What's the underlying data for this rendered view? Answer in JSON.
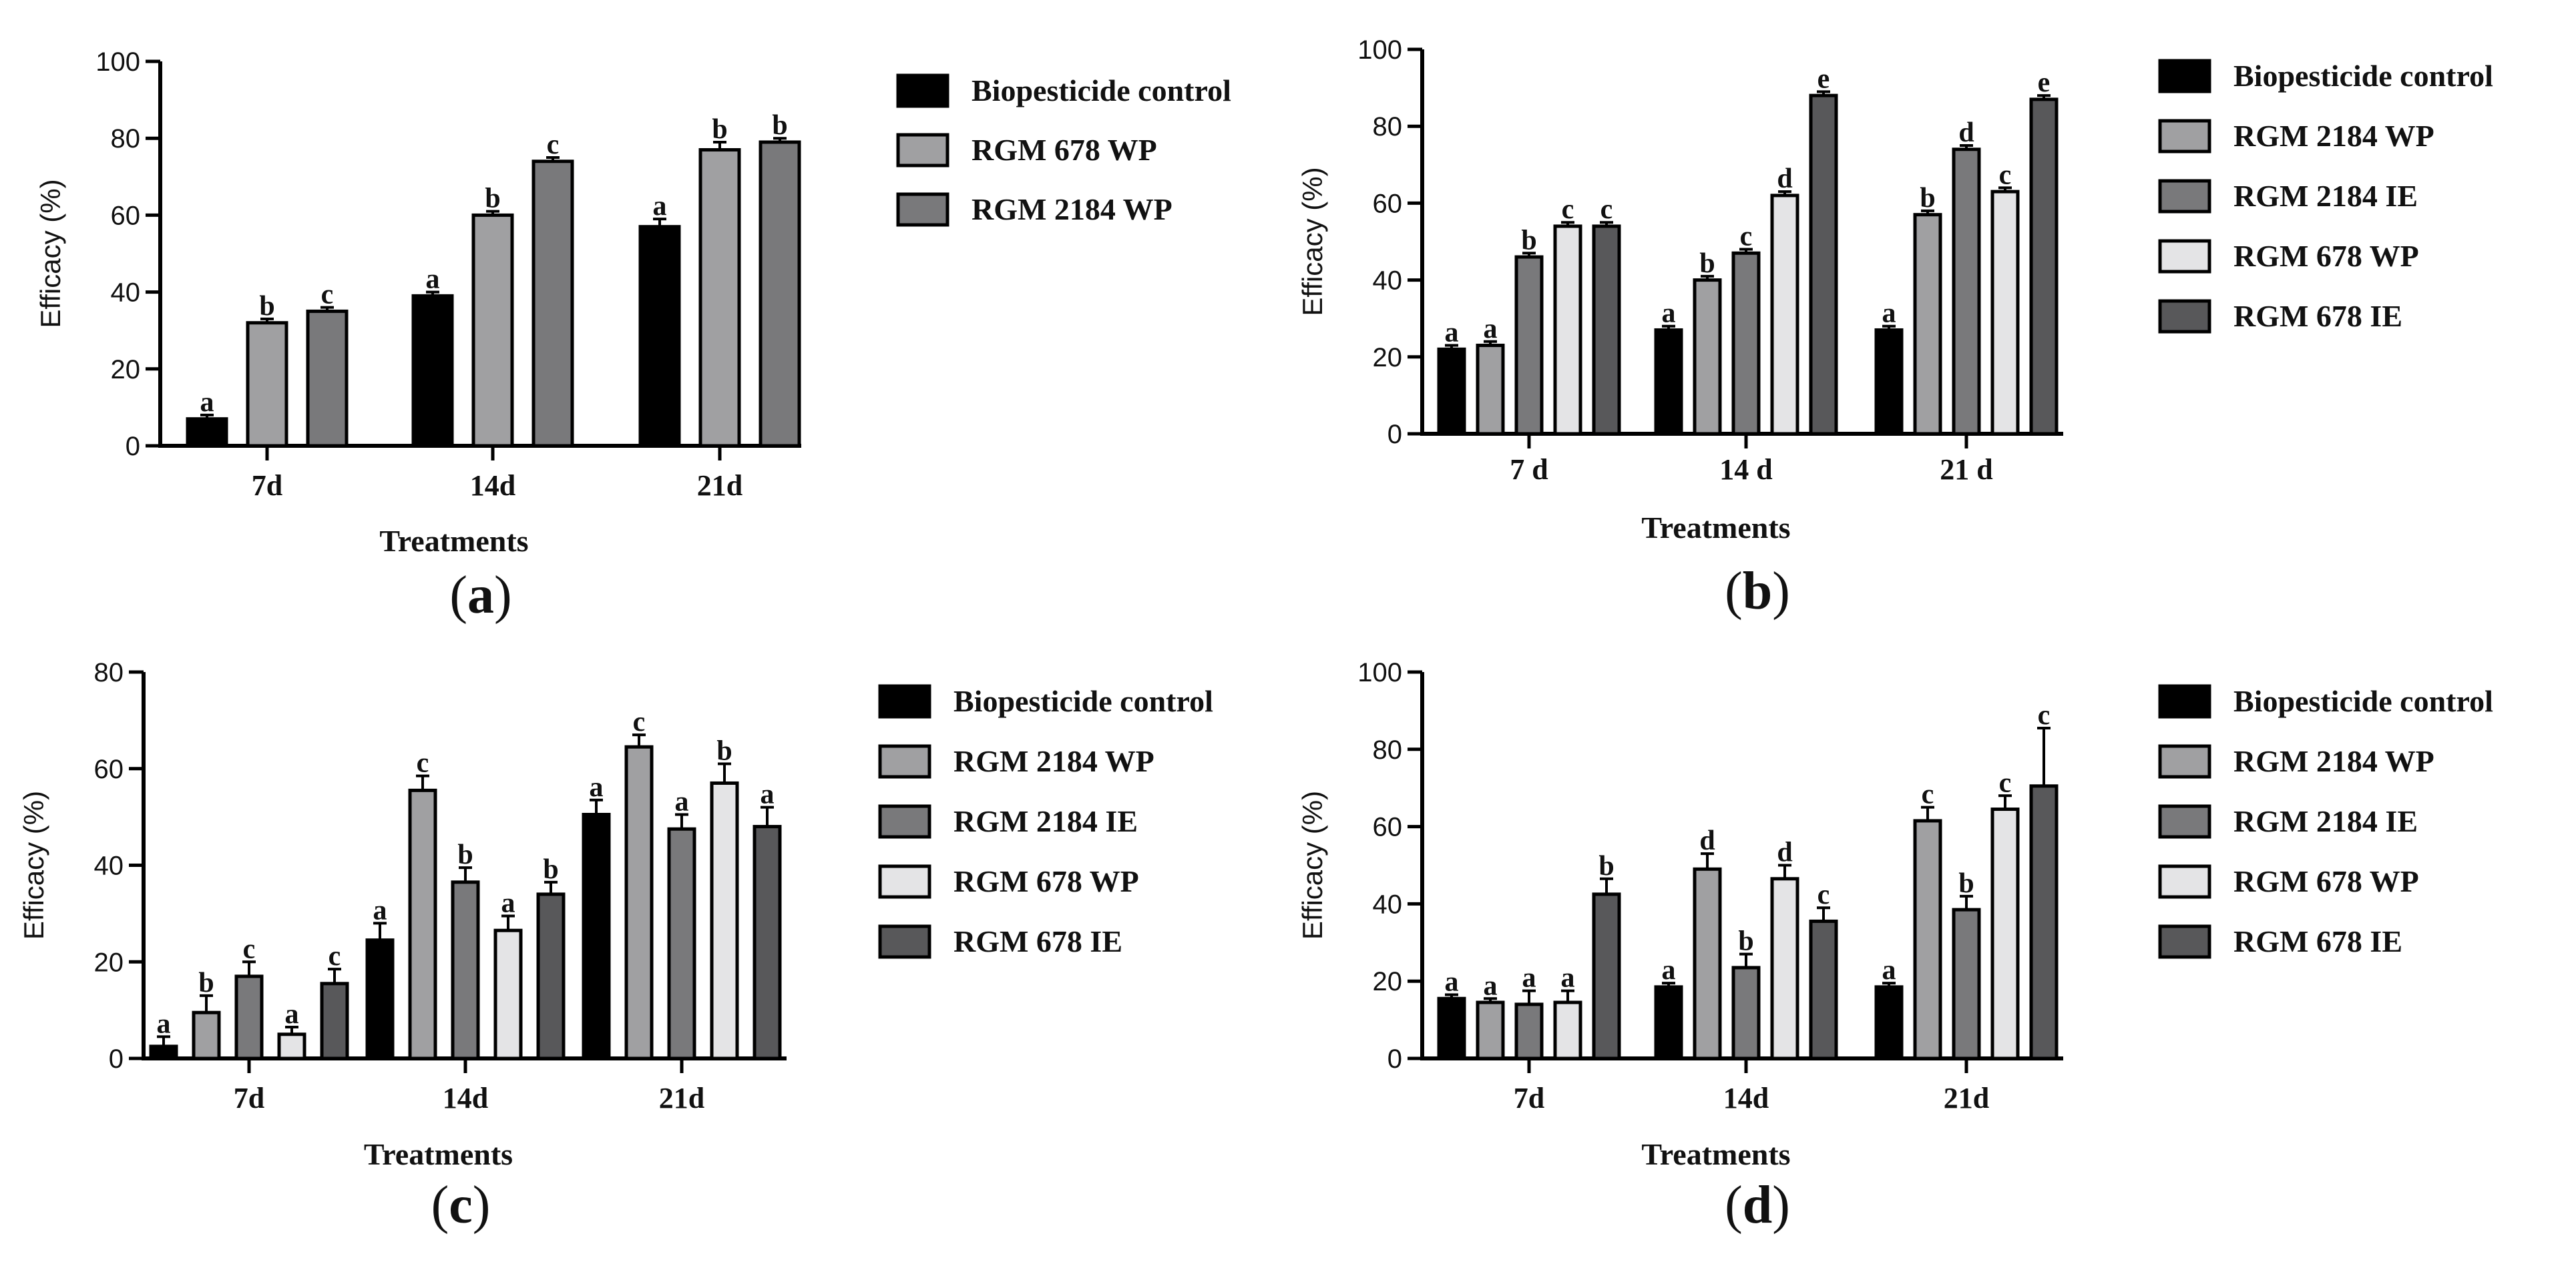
{
  "chart_data": [
    {
      "id": "a",
      "type": "bar",
      "panel_label": "a",
      "xlabel": "Treatments",
      "ylabel": "Efficacy (%)",
      "ylim": [
        0,
        100
      ],
      "yticks": [
        0,
        20,
        40,
        60,
        80,
        100
      ],
      "categories": [
        "7d",
        "14d",
        "21d"
      ],
      "series": [
        {
          "name": "Biopesticide control",
          "color": "#000000",
          "values": [
            7,
            39,
            57
          ],
          "errors": [
            1,
            1,
            2
          ],
          "letters": [
            "a",
            "a",
            "a"
          ]
        },
        {
          "name": "RGM 678 WP",
          "color": "#a0a0a2",
          "values": [
            32,
            60,
            77
          ],
          "errors": [
            1,
            1,
            2
          ],
          "letters": [
            "b",
            "b",
            "b"
          ]
        },
        {
          "name": "RGM 2184 WP",
          "color": "#79797b",
          "values": [
            35,
            74,
            79
          ],
          "errors": [
            1,
            1,
            1
          ],
          "letters": [
            "c",
            "c",
            "b"
          ]
        }
      ]
    },
    {
      "id": "b",
      "type": "bar",
      "panel_label": "b",
      "xlabel": "Treatments",
      "ylabel": "Efficacy (%)",
      "ylim": [
        0,
        100
      ],
      "yticks": [
        0,
        20,
        40,
        60,
        80,
        100
      ],
      "categories": [
        "7 d",
        "14 d",
        "21 d"
      ],
      "series": [
        {
          "name": "Biopesticide control",
          "color": "#000000",
          "values": [
            22,
            27,
            27
          ],
          "errors": [
            1,
            1,
            1
          ],
          "letters": [
            "a",
            "a",
            "a"
          ]
        },
        {
          "name": "RGM 2184 WP",
          "color": "#a0a0a2",
          "values": [
            23,
            40,
            57
          ],
          "errors": [
            1,
            1,
            1
          ],
          "letters": [
            "a",
            "b",
            "b"
          ]
        },
        {
          "name": "RGM 2184 IE",
          "color": "#79797b",
          "values": [
            46,
            47,
            74
          ],
          "errors": [
            1,
            1,
            1
          ],
          "letters": [
            "b",
            "c",
            "d"
          ]
        },
        {
          "name": "RGM 678 WP",
          "color": "#e4e4e6",
          "values": [
            54,
            62,
            63
          ],
          "errors": [
            1,
            1,
            1
          ],
          "letters": [
            "c",
            "d",
            "c"
          ]
        },
        {
          "name": "RGM 678 IE",
          "color": "#58585a",
          "values": [
            54,
            88,
            87
          ],
          "errors": [
            1,
            1,
            1
          ],
          "letters": [
            "c",
            "e",
            "e"
          ]
        }
      ]
    },
    {
      "id": "c",
      "type": "bar",
      "panel_label": "c",
      "xlabel": "Treatments",
      "ylabel": "Efficacy (%)",
      "ylim": [
        0,
        80
      ],
      "yticks": [
        0,
        20,
        40,
        60,
        80
      ],
      "categories": [
        "7d",
        "14d",
        "21d"
      ],
      "series": [
        {
          "name": "Biopesticide control",
          "color": "#000000",
          "values": [
            2.5,
            24.5,
            50.5
          ],
          "errors": [
            2,
            3.5,
            3
          ],
          "letters": [
            "a",
            "a",
            "a"
          ]
        },
        {
          "name": "RGM 2184 WP",
          "color": "#a0a0a2",
          "values": [
            9.5,
            55.5,
            64.5
          ],
          "errors": [
            3.5,
            3,
            2.5
          ],
          "letters": [
            "b",
            "c",
            "c"
          ]
        },
        {
          "name": "RGM 2184 IE",
          "color": "#79797b",
          "values": [
            17,
            36.5,
            47.5
          ],
          "errors": [
            3,
            3,
            3
          ],
          "letters": [
            "c",
            "b",
            "a"
          ]
        },
        {
          "name": "RGM 678 WP",
          "color": "#e4e4e6",
          "values": [
            5,
            26.5,
            57
          ],
          "errors": [
            1.5,
            3,
            4
          ],
          "letters": [
            "a",
            "a",
            "b"
          ]
        },
        {
          "name": "RGM 678 IE",
          "color": "#58585a",
          "values": [
            15.5,
            34,
            48
          ],
          "errors": [
            3,
            2.5,
            4
          ],
          "letters": [
            "c",
            "b",
            "a"
          ]
        }
      ]
    },
    {
      "id": "d",
      "type": "bar",
      "panel_label": "d",
      "xlabel": "Treatments",
      "ylabel": "Efficacy (%)",
      "ylim": [
        0,
        100
      ],
      "yticks": [
        0,
        20,
        40,
        60,
        80,
        100
      ],
      "categories": [
        "7d",
        "14d",
        "21d"
      ],
      "series": [
        {
          "name": "Biopesticide control",
          "color": "#000000",
          "values": [
            15.5,
            18.5,
            18.5
          ],
          "errors": [
            1,
            1,
            1
          ],
          "letters": [
            "a",
            "a",
            "a"
          ]
        },
        {
          "name": "RGM 2184 WP",
          "color": "#a0a0a2",
          "values": [
            14.5,
            49,
            61.5
          ],
          "errors": [
            1,
            4,
            3.5
          ],
          "letters": [
            "a",
            "d",
            "c"
          ]
        },
        {
          "name": "RGM 2184 IE",
          "color": "#79797b",
          "values": [
            14,
            23.5,
            38.5
          ],
          "errors": [
            3.5,
            3.5,
            3.5
          ],
          "letters": [
            "a",
            "b",
            "b"
          ]
        },
        {
          "name": "RGM 678 WP",
          "color": "#e4e4e6",
          "values": [
            14.5,
            46.5,
            64.5
          ],
          "errors": [
            3,
            3.5,
            3.5
          ],
          "letters": [
            "a",
            "d",
            "c"
          ]
        },
        {
          "name": "RGM 678 IE",
          "color": "#58585a",
          "values": [
            42.5,
            35.5,
            70.5
          ],
          "errors": [
            4,
            3.5,
            15
          ],
          "letters": [
            "b",
            "c",
            "c"
          ]
        }
      ]
    }
  ]
}
